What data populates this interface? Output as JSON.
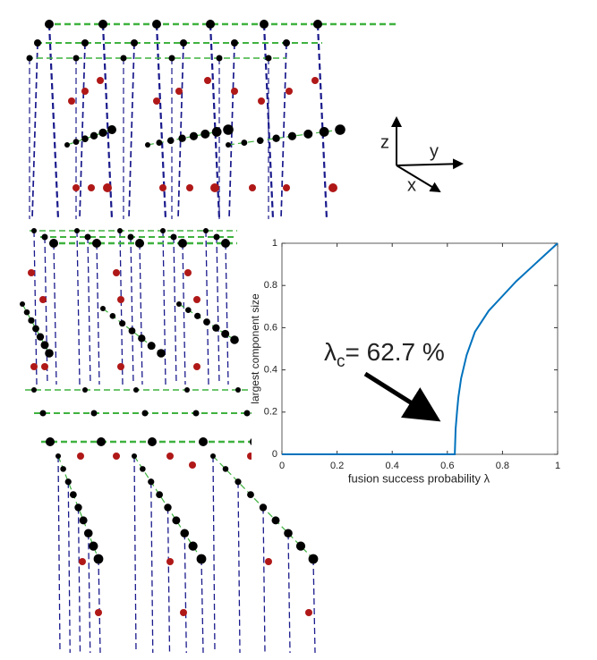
{
  "diagram": {
    "axis_labels": {
      "z": "z",
      "y": "y",
      "x": "x"
    }
  },
  "chart_data": {
    "type": "line",
    "xlabel": "fusion success probability  λ",
    "ylabel": "largest component size",
    "annotation_symbol": "λ",
    "annotation_subscript": "c",
    "annotation_value": "= 62.7 %",
    "x": [
      0,
      0.1,
      0.2,
      0.3,
      0.4,
      0.5,
      0.6,
      0.62,
      0.627,
      0.63,
      0.635,
      0.64,
      0.65,
      0.67,
      0.7,
      0.75,
      0.8,
      0.85,
      0.9,
      0.95,
      1
    ],
    "values": [
      0,
      0,
      0,
      0,
      0,
      0,
      0,
      0,
      0,
      0.12,
      0.2,
      0.27,
      0.36,
      0.47,
      0.58,
      0.68,
      0.75,
      0.82,
      0.88,
      0.94,
      1
    ],
    "color": "#0072bd",
    "xlim": [
      0,
      1
    ],
    "xticks": [
      0,
      0.2,
      0.4,
      0.6,
      0.8,
      1
    ],
    "ylim": [
      0,
      1
    ],
    "yticks": [
      0,
      0.2,
      0.4,
      0.6,
      0.8,
      1
    ],
    "grid": false
  }
}
